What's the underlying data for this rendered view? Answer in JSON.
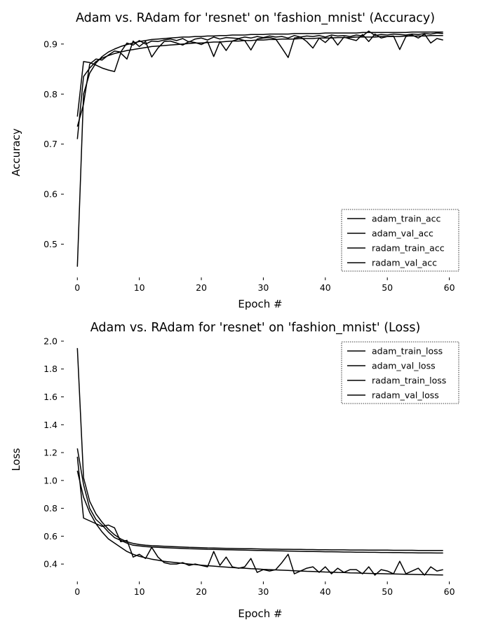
{
  "chart_data": [
    {
      "type": "line",
      "title": "Adam vs. RAdam for 'resnet' on 'fashion_mnist' (Accuracy)",
      "xlabel": "Epoch #",
      "ylabel": "Accuracy",
      "xlim": [
        -1.5,
        60.5
      ],
      "ylim": [
        0.435,
        0.932
      ],
      "xticks": [
        0,
        10,
        20,
        30,
        40,
        50,
        60
      ],
      "yticks": [
        0.5,
        0.6,
        0.7,
        0.8,
        0.9
      ],
      "ytick_labels": [
        "0.5",
        "0.6",
        "0.7",
        "0.8",
        "0.9"
      ],
      "grid": false,
      "legend_position": "lower-right",
      "series": [
        {
          "name": "adam_train_acc",
          "color": "#000000",
          "values": [
            0.71,
            0.835,
            0.852,
            0.865,
            0.872,
            0.877,
            0.881,
            0.884,
            0.887,
            0.889,
            0.891,
            0.893,
            0.895,
            0.896,
            0.897,
            0.898,
            0.899,
            0.9,
            0.901,
            0.902,
            0.902,
            0.903,
            0.904,
            0.904,
            0.905,
            0.906,
            0.906,
            0.907,
            0.907,
            0.908,
            0.908,
            0.909,
            0.909,
            0.91,
            0.91,
            0.91,
            0.911,
            0.911,
            0.911,
            0.912,
            0.912,
            0.912,
            0.913,
            0.913,
            0.913,
            0.914,
            0.914,
            0.914,
            0.914,
            0.915,
            0.915,
            0.915,
            0.915,
            0.916,
            0.916,
            0.916,
            0.916,
            0.917,
            0.917,
            0.917
          ]
        },
        {
          "name": "adam_val_acc",
          "color": "#000000",
          "values": [
            0.755,
            0.865,
            0.863,
            0.858,
            0.852,
            0.848,
            0.845,
            0.882,
            0.87,
            0.906,
            0.895,
            0.905,
            0.874,
            0.892,
            0.905,
            0.906,
            0.902,
            0.898,
            0.905,
            0.903,
            0.899,
            0.905,
            0.875,
            0.905,
            0.887,
            0.906,
            0.91,
            0.907,
            0.888,
            0.91,
            0.912,
            0.913,
            0.91,
            0.892,
            0.873,
            0.912,
            0.914,
            0.905,
            0.892,
            0.912,
            0.903,
            0.915,
            0.898,
            0.914,
            0.91,
            0.907,
            0.919,
            0.905,
            0.92,
            0.912,
            0.915,
            0.916,
            0.889,
            0.915,
            0.918,
            0.912,
            0.92,
            0.902,
            0.911,
            0.908
          ]
        },
        {
          "name": "radam_train_acc",
          "color": "#000000",
          "values": [
            0.455,
            0.8,
            0.842,
            0.862,
            0.875,
            0.884,
            0.89,
            0.895,
            0.899,
            0.902,
            0.905,
            0.907,
            0.909,
            0.91,
            0.911,
            0.912,
            0.913,
            0.914,
            0.914,
            0.915,
            0.915,
            0.916,
            0.916,
            0.917,
            0.917,
            0.918,
            0.918,
            0.918,
            0.919,
            0.919,
            0.919,
            0.92,
            0.92,
            0.92,
            0.92,
            0.921,
            0.921,
            0.921,
            0.921,
            0.921,
            0.922,
            0.922,
            0.922,
            0.922,
            0.922,
            0.922,
            0.923,
            0.923,
            0.923,
            0.923,
            0.923,
            0.923,
            0.923,
            0.923,
            0.924,
            0.924,
            0.924,
            0.924,
            0.924,
            0.924
          ]
        },
        {
          "name": "radam_val_acc",
          "color": "#000000",
          "values": [
            0.735,
            0.78,
            0.86,
            0.87,
            0.868,
            0.878,
            0.886,
            0.884,
            0.902,
            0.898,
            0.907,
            0.9,
            0.906,
            0.905,
            0.908,
            0.91,
            0.907,
            0.911,
            0.904,
            0.91,
            0.912,
            0.908,
            0.914,
            0.91,
            0.913,
            0.912,
            0.911,
            0.914,
            0.912,
            0.915,
            0.913,
            0.916,
            0.914,
            0.915,
            0.912,
            0.917,
            0.914,
            0.916,
            0.915,
            0.917,
            0.914,
            0.918,
            0.916,
            0.917,
            0.915,
            0.918,
            0.916,
            0.926,
            0.917,
            0.919,
            0.918,
            0.92,
            0.919,
            0.918,
            0.92,
            0.919,
            0.921,
            0.92,
            0.922,
            0.921
          ]
        }
      ]
    },
    {
      "type": "line",
      "title": "Adam vs. RAdam for 'resnet' on 'fashion_mnist' (Loss)",
      "xlabel": "Epoch #",
      "ylabel": "Loss",
      "xlim": [
        -1.5,
        60.5
      ],
      "ylim": [
        0.28,
        2.02
      ],
      "xticks": [
        0,
        10,
        20,
        30,
        40,
        50,
        60
      ],
      "yticks": [
        0.4,
        0.6,
        0.8,
        1.0,
        1.2,
        1.4,
        1.6,
        1.8,
        2.0
      ],
      "ytick_labels": [
        "0.4",
        "0.6",
        "0.8",
        "1.0",
        "1.2",
        "1.4",
        "1.6",
        "1.8",
        "2.0"
      ],
      "grid": false,
      "legend_position": "upper-right",
      "series": [
        {
          "name": "adam_train_loss",
          "color": "#000000",
          "values": [
            1.07,
            0.88,
            0.77,
            0.69,
            0.63,
            0.58,
            0.55,
            0.52,
            0.49,
            0.47,
            0.455,
            0.445,
            0.435,
            0.428,
            0.42,
            0.415,
            0.41,
            0.405,
            0.4,
            0.396,
            0.392,
            0.388,
            0.385,
            0.381,
            0.378,
            0.375,
            0.372,
            0.37,
            0.367,
            0.365,
            0.362,
            0.36,
            0.358,
            0.356,
            0.354,
            0.352,
            0.35,
            0.348,
            0.347,
            0.345,
            0.343,
            0.342,
            0.34,
            0.339,
            0.337,
            0.336,
            0.334,
            0.333,
            0.332,
            0.331,
            0.33,
            0.329,
            0.328,
            0.327,
            0.326,
            0.325,
            0.324,
            0.323,
            0.322,
            0.321
          ]
        },
        {
          "name": "adam_val_loss",
          "color": "#000000",
          "values": [
            1.17,
            0.73,
            0.71,
            0.69,
            0.67,
            0.68,
            0.66,
            0.56,
            0.57,
            0.45,
            0.47,
            0.44,
            0.52,
            0.45,
            0.41,
            0.4,
            0.4,
            0.41,
            0.39,
            0.4,
            0.39,
            0.38,
            0.49,
            0.39,
            0.45,
            0.38,
            0.37,
            0.38,
            0.44,
            0.34,
            0.36,
            0.35,
            0.36,
            0.41,
            0.47,
            0.33,
            0.35,
            0.37,
            0.38,
            0.34,
            0.38,
            0.33,
            0.37,
            0.34,
            0.36,
            0.36,
            0.33,
            0.38,
            0.32,
            0.36,
            0.35,
            0.33,
            0.42,
            0.33,
            0.35,
            0.37,
            0.32,
            0.38,
            0.35,
            0.36
          ]
        },
        {
          "name": "radam_train_loss",
          "color": "#000000",
          "values": [
            1.95,
            1.02,
            0.85,
            0.76,
            0.7,
            0.65,
            0.61,
            0.58,
            0.56,
            0.548,
            0.54,
            0.535,
            0.532,
            0.53,
            0.528,
            0.526,
            0.524,
            0.522,
            0.52,
            0.519,
            0.518,
            0.516,
            0.515,
            0.514,
            0.513,
            0.512,
            0.511,
            0.51,
            0.51,
            0.509,
            0.508,
            0.507,
            0.507,
            0.506,
            0.506,
            0.505,
            0.505,
            0.504,
            0.504,
            0.503,
            0.503,
            0.502,
            0.502,
            0.502,
            0.501,
            0.501,
            0.501,
            0.5,
            0.5,
            0.5,
            0.5,
            0.499,
            0.499,
            0.499,
            0.499,
            0.498,
            0.498,
            0.498,
            0.498,
            0.497
          ]
        },
        {
          "name": "radam_val_loss",
          "color": "#000000",
          "values": [
            1.23,
            0.97,
            0.8,
            0.72,
            0.68,
            0.63,
            0.59,
            0.57,
            0.55,
            0.535,
            0.53,
            0.525,
            0.522,
            0.52,
            0.518,
            0.516,
            0.514,
            0.512,
            0.51,
            0.509,
            0.508,
            0.506,
            0.505,
            0.504,
            0.503,
            0.502,
            0.501,
            0.5,
            0.499,
            0.498,
            0.497,
            0.496,
            0.495,
            0.494,
            0.493,
            0.492,
            0.491,
            0.49,
            0.49,
            0.489,
            0.488,
            0.488,
            0.487,
            0.486,
            0.486,
            0.485,
            0.485,
            0.484,
            0.484,
            0.483,
            0.483,
            0.482,
            0.482,
            0.481,
            0.481,
            0.48,
            0.48,
            0.48,
            0.479,
            0.479
          ]
        }
      ]
    }
  ]
}
